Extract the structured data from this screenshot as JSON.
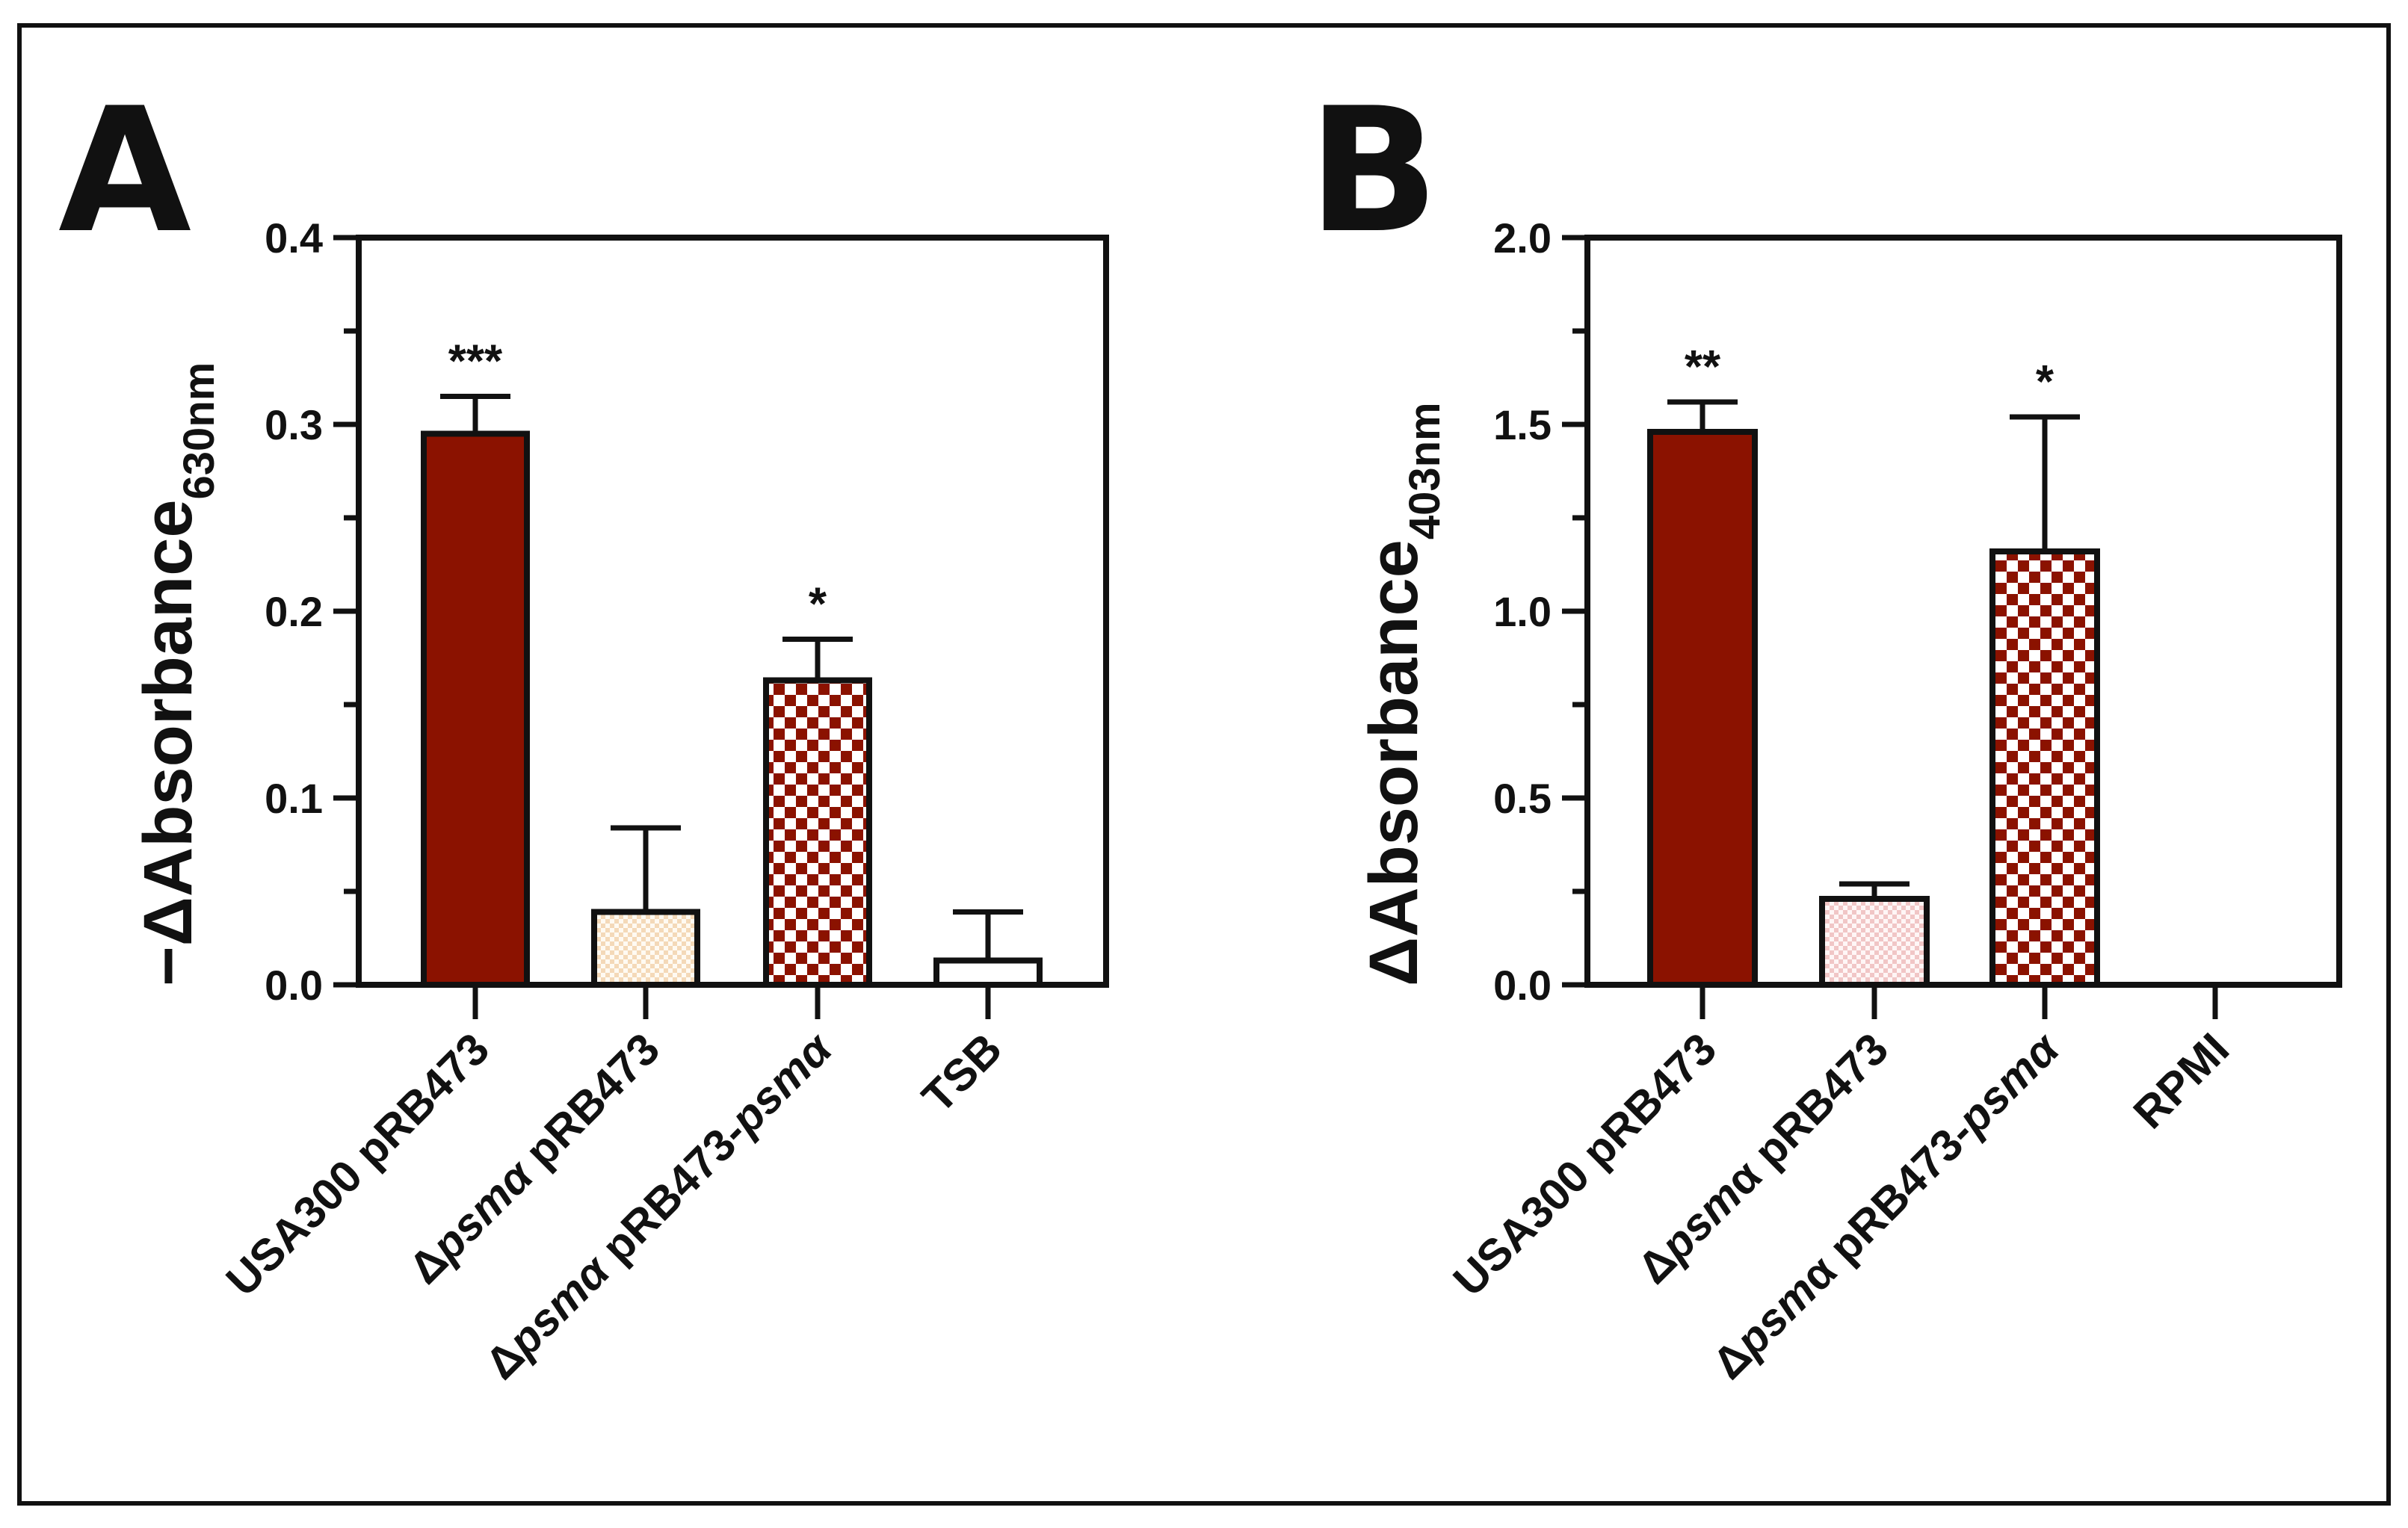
{
  "figure": {
    "colors": {
      "dark_red": "#8b1200",
      "text": "#111111",
      "frame": "#111111",
      "cream": "#f4d9b8",
      "pink": "#f1c6c6"
    }
  },
  "chart_data": [
    {
      "panel": "A",
      "type": "bar",
      "ylabel": "−ΔAbsorbance",
      "ylabel_sub": "630nm",
      "ylim": [
        0,
        0.4
      ],
      "yticks": [
        "0.0",
        "0.1",
        "0.2",
        "0.3",
        "0.4"
      ],
      "categories": [
        {
          "pre": "",
          "ital": "",
          "post": "USA300 pRB473"
        },
        {
          "pre": "Δ",
          "ital": "psmα",
          "post": " pRB473"
        },
        {
          "pre": "Δ",
          "ital": "psmα",
          "post": " pRB473-",
          "ital2": "psmα"
        },
        {
          "pre": "",
          "ital": "",
          "post": "TSB"
        }
      ],
      "values": [
        0.295,
        0.039,
        0.163,
        0.013
      ],
      "errors": [
        0.02,
        0.045,
        0.022,
        0.026
      ],
      "fills": [
        "solid",
        "cream-check",
        "red-check",
        "white"
      ],
      "significance": [
        "***",
        "",
        "*",
        ""
      ]
    },
    {
      "panel": "B",
      "type": "bar",
      "ylabel": "ΔAbsorbance",
      "ylabel_sub": "403nm",
      "ylim": [
        0,
        2.0
      ],
      "yticks": [
        "0.0",
        "0.5",
        "1.0",
        "1.5",
        "2.0"
      ],
      "categories": [
        {
          "pre": "",
          "ital": "",
          "post": "USA300 pRB473"
        },
        {
          "pre": "Δ",
          "ital": "psm",
          "post": "α pRB473"
        },
        {
          "pre": "Δ",
          "ital": "psm",
          "post": "α pRB473-",
          "ital2": "psmα"
        },
        {
          "pre": "",
          "ital": "",
          "post": "RPMI"
        }
      ],
      "values": [
        1.48,
        0.23,
        1.16,
        0.0
      ],
      "errors": [
        0.08,
        0.04,
        0.36,
        0.0
      ],
      "fills": [
        "solid",
        "pink-check",
        "red-check",
        "none"
      ],
      "significance": [
        "**",
        "",
        "*",
        ""
      ]
    }
  ]
}
